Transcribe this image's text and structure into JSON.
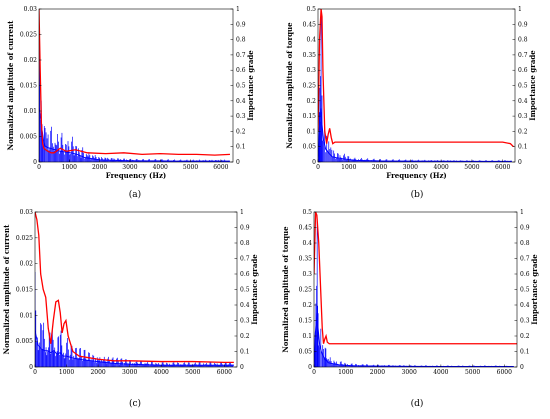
{
  "colors": {
    "spectrum": "#0000ff",
    "importance": "#ff0000",
    "axis": "#000000"
  },
  "chart_data": [
    {
      "id": "a",
      "type": "line",
      "caption": "(a)",
      "xlabel": "Frequency (Hz)",
      "ylabel": "Normalized amplitude of current",
      "y2label": "Importance grade",
      "xlim": [
        0,
        6400
      ],
      "ylim": [
        0,
        0.03
      ],
      "y2lim": [
        0,
        1
      ],
      "xticks": [
        0,
        1000,
        2000,
        3000,
        4000,
        5000,
        6000
      ],
      "yticks": [
        "0",
        "0.005",
        "0.01",
        "0.015",
        "0.02",
        "0.025",
        "0.03"
      ],
      "y2ticks": [
        "0",
        "0.1",
        "0.2",
        "0.3",
        "0.4",
        "0.5",
        "0.6",
        "0.7",
        "0.8",
        "0.9",
        "1"
      ],
      "series": [
        {
          "axis": "left",
          "style": "spectrum",
          "x": [
            0,
            50,
            100,
            150,
            200,
            300,
            500,
            700,
            900,
            1100,
            1300,
            1500,
            2000,
            2500,
            3000,
            3500,
            4000,
            4500,
            5000,
            5500,
            6000,
            6300
          ],
          "y": [
            0.03,
            0.025,
            0.018,
            0.012,
            0.009,
            0.008,
            0.007,
            0.006,
            0.0055,
            0.005,
            0.004,
            0.0025,
            0.0012,
            0.0009,
            0.0007,
            0.0006,
            0.0006,
            0.0005,
            0.0005,
            0.0005,
            0.0005,
            0.0005
          ]
        },
        {
          "axis": "right",
          "style": "importance",
          "x": [
            0,
            40,
            80,
            120,
            160,
            220,
            300,
            400,
            500,
            700,
            900,
            1200,
            1600,
            2200,
            2800,
            3400,
            4000,
            4600,
            5200,
            5800,
            6300
          ],
          "y": [
            1.0,
            0.6,
            0.25,
            0.12,
            0.09,
            0.08,
            0.07,
            0.06,
            0.06,
            0.09,
            0.07,
            0.08,
            0.06,
            0.055,
            0.06,
            0.05,
            0.055,
            0.05,
            0.05,
            0.045,
            0.05
          ]
        }
      ]
    },
    {
      "id": "b",
      "type": "line",
      "caption": "(b)",
      "xlabel": "Frequency (Hz)",
      "ylabel": "Normalized amplitude of torque",
      "y2label": "Importance grade",
      "xlim": [
        0,
        6400
      ],
      "ylim": [
        0,
        0.5
      ],
      "y2lim": [
        0,
        1
      ],
      "xticks": [
        0,
        1000,
        2000,
        3000,
        4000,
        5000,
        6000
      ],
      "yticks": [
        "0",
        "0.05",
        "0.1",
        "0.15",
        "0.2",
        "0.25",
        "0.3",
        "0.35",
        "0.4",
        "0.45",
        "0.5"
      ],
      "y2ticks": [
        "0",
        "0.1",
        "0.2",
        "0.3",
        "0.4",
        "0.5",
        "0.6",
        "0.7",
        "0.8",
        "0.9",
        "1"
      ],
      "series": [
        {
          "axis": "left",
          "style": "spectrum",
          "x": [
            0,
            40,
            80,
            100,
            130,
            180,
            250,
            350,
            450,
            600,
            800,
            1200,
            2000,
            3000,
            4000,
            5000,
            6000,
            6300
          ],
          "y": [
            0.05,
            0.3,
            0.45,
            0.5,
            0.35,
            0.2,
            0.12,
            0.08,
            0.05,
            0.04,
            0.03,
            0.015,
            0.01,
            0.008,
            0.007,
            0.006,
            0.006,
            0.006
          ]
        },
        {
          "axis": "right",
          "style": "importance",
          "x": [
            0,
            50,
            100,
            130,
            160,
            220,
            280,
            330,
            380,
            430,
            480,
            550,
            700,
            1500,
            3000,
            4500,
            6000,
            6250,
            6350
          ],
          "y": [
            0.2,
            0.8,
            1.0,
            0.95,
            0.6,
            0.2,
            0.12,
            0.18,
            0.22,
            0.16,
            0.12,
            0.13,
            0.13,
            0.13,
            0.13,
            0.13,
            0.13,
            0.12,
            0.1
          ]
        }
      ]
    },
    {
      "id": "c",
      "type": "line",
      "caption": "(c)",
      "xlabel": "",
      "ylabel": "Normalized amplitude of current",
      "y2label": "Importance grade",
      "xlim": [
        0,
        6400
      ],
      "ylim": [
        0,
        0.03
      ],
      "y2lim": [
        0,
        1
      ],
      "xticks": [
        0,
        1000,
        2000,
        3000,
        4000,
        5000,
        6000
      ],
      "yticks": [
        "0",
        "0.005",
        "0.01",
        "0.015",
        "0.02",
        "0.025",
        "0.03"
      ],
      "y2ticks": [
        "0",
        "0.1",
        "0.2",
        "0.3",
        "0.4",
        "0.5",
        "0.6",
        "0.7",
        "0.8",
        "0.9",
        "1"
      ],
      "series": [
        {
          "axis": "left",
          "style": "spectrum",
          "x": [
            0,
            50,
            100,
            200,
            300,
            400,
            500,
            600,
            700,
            800,
            900,
            1000,
            1200,
            1500,
            2000,
            2500,
            3000,
            4000,
            5000,
            6000,
            6300
          ],
          "y": [
            0.02,
            0.016,
            0.012,
            0.01,
            0.009,
            0.009,
            0.008,
            0.009,
            0.007,
            0.008,
            0.006,
            0.006,
            0.005,
            0.004,
            0.003,
            0.002,
            0.0015,
            0.001,
            0.001,
            0.001,
            0.001
          ]
        },
        {
          "axis": "right",
          "style": "importance",
          "x": [
            0,
            60,
            120,
            180,
            260,
            340,
            420,
            500,
            580,
            660,
            740,
            800,
            860,
            920,
            980,
            1050,
            1200,
            1400,
            1700,
            2000,
            2500,
            3000,
            4000,
            5000,
            6000,
            6300
          ],
          "y": [
            1.0,
            0.95,
            0.85,
            0.6,
            0.5,
            0.45,
            0.25,
            0.15,
            0.3,
            0.42,
            0.43,
            0.35,
            0.22,
            0.28,
            0.3,
            0.2,
            0.1,
            0.07,
            0.06,
            0.05,
            0.04,
            0.04,
            0.035,
            0.035,
            0.03,
            0.03
          ]
        }
      ]
    },
    {
      "id": "d",
      "type": "line",
      "caption": "(d)",
      "xlabel": "",
      "ylabel": "Normalized amplitude of torque",
      "y2label": "Importance grade",
      "xlim": [
        0,
        6400
      ],
      "ylim": [
        0,
        0.5
      ],
      "y2lim": [
        0,
        1
      ],
      "xticks": [
        0,
        1000,
        2000,
        3000,
        4000,
        5000,
        6000
      ],
      "yticks": [
        "0",
        "0.05",
        "0.1",
        "0.15",
        "0.2",
        "0.25",
        "0.3",
        "0.35",
        "0.4",
        "0.45",
        "0.5"
      ],
      "y2ticks": [
        "0",
        "0.1",
        "0.2",
        "0.3",
        "0.4",
        "0.5",
        "0.6",
        "0.7",
        "0.8",
        "0.9",
        "1"
      ],
      "series": [
        {
          "axis": "left",
          "style": "spectrum",
          "x": [
            0,
            40,
            80,
            100,
            130,
            180,
            250,
            350,
            450,
            600,
            800,
            1200,
            2000,
            3000,
            4000,
            5000,
            6000,
            6300
          ],
          "y": [
            0.05,
            0.3,
            0.45,
            0.5,
            0.35,
            0.2,
            0.12,
            0.07,
            0.04,
            0.03,
            0.02,
            0.012,
            0.008,
            0.006,
            0.005,
            0.005,
            0.005,
            0.005
          ]
        },
        {
          "axis": "right",
          "style": "importance",
          "x": [
            0,
            50,
            90,
            150,
            210,
            260,
            300,
            340,
            380,
            420,
            480,
            600,
            1500,
            3000,
            4500,
            6000,
            6400
          ],
          "y": [
            0.6,
            1.0,
            0.98,
            0.8,
            0.5,
            0.25,
            0.15,
            0.18,
            0.2,
            0.16,
            0.15,
            0.15,
            0.15,
            0.15,
            0.15,
            0.15,
            0.15
          ]
        }
      ]
    }
  ]
}
